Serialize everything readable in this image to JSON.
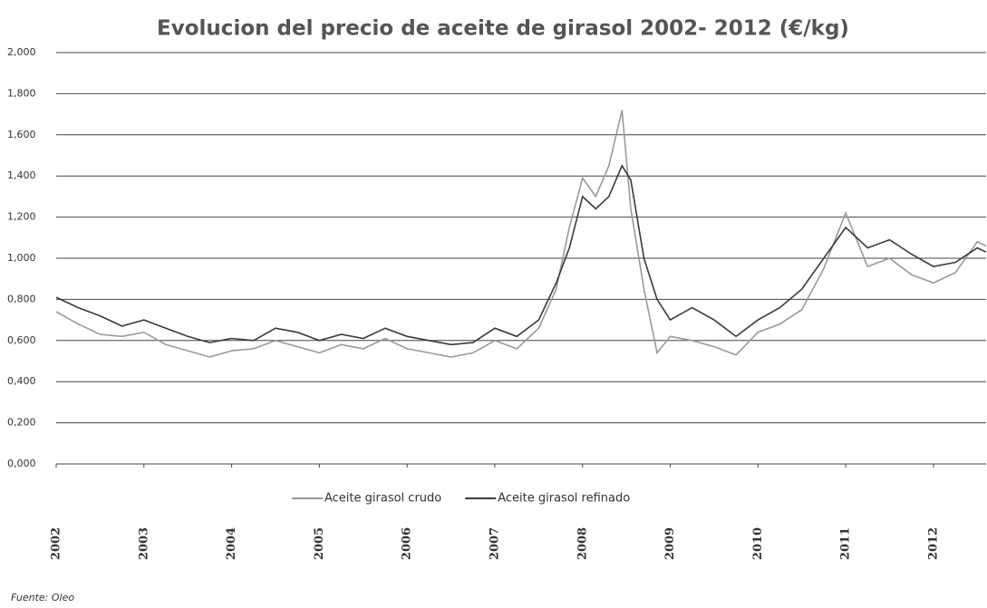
{
  "chart_data": {
    "type": "line",
    "title": "Evolucion del precio de aceite de girasol 2002- 2012 (€/kg)",
    "source": "Fuente: Oleo",
    "x": [
      2002.0,
      2002.25,
      2002.5,
      2002.75,
      2003.0,
      2003.25,
      2003.5,
      2003.75,
      2004.0,
      2004.25,
      2004.5,
      2004.75,
      2005.0,
      2005.25,
      2005.5,
      2005.75,
      2006.0,
      2006.25,
      2006.5,
      2006.75,
      2007.0,
      2007.25,
      2007.5,
      2007.7,
      2007.85,
      2008.0,
      2008.15,
      2008.3,
      2008.45,
      2008.55,
      2008.7,
      2008.85,
      2009.0,
      2009.25,
      2009.5,
      2009.75,
      2010.0,
      2010.25,
      2010.5,
      2010.75,
      2011.0,
      2011.25,
      2011.5,
      2011.75,
      2012.0,
      2012.25,
      2012.5,
      2012.6
    ],
    "series": [
      {
        "name": "Aceite girasol crudo",
        "color": "#9a9a9a",
        "values": [
          0.74,
          0.68,
          0.63,
          0.62,
          0.64,
          0.58,
          0.55,
          0.52,
          0.55,
          0.56,
          0.6,
          0.57,
          0.54,
          0.58,
          0.56,
          0.61,
          0.56,
          0.54,
          0.52,
          0.54,
          0.6,
          0.56,
          0.66,
          0.85,
          1.15,
          1.39,
          1.3,
          1.45,
          1.72,
          1.24,
          0.85,
          0.54,
          0.62,
          0.6,
          0.57,
          0.53,
          0.64,
          0.68,
          0.75,
          0.95,
          1.22,
          0.96,
          1.0,
          0.92,
          0.88,
          0.93,
          1.08,
          1.06
        ]
      },
      {
        "name": "Aceite girasol refinado",
        "color": "#3a3a3a",
        "values": [
          0.81,
          0.76,
          0.72,
          0.67,
          0.7,
          0.66,
          0.62,
          0.59,
          0.61,
          0.6,
          0.66,
          0.64,
          0.6,
          0.63,
          0.61,
          0.66,
          0.62,
          0.6,
          0.58,
          0.59,
          0.66,
          0.62,
          0.7,
          0.88,
          1.05,
          1.3,
          1.24,
          1.3,
          1.45,
          1.38,
          1.0,
          0.8,
          0.7,
          0.76,
          0.7,
          0.62,
          0.7,
          0.76,
          0.85,
          1.0,
          1.15,
          1.05,
          1.09,
          1.02,
          0.96,
          0.98,
          1.05,
          1.03
        ]
      }
    ],
    "xlim": [
      2002,
      2012.6
    ],
    "xticks": [
      2002,
      2003,
      2004,
      2005,
      2006,
      2007,
      2008,
      2009,
      2010,
      2011,
      2012
    ],
    "ylim": [
      0,
      2
    ],
    "yticks": [
      {
        "value": 0,
        "label": "0,000"
      },
      {
        "value": 0.2,
        "label": "0,200"
      },
      {
        "value": 0.4,
        "label": "0,400"
      },
      {
        "value": 0.6,
        "label": "0,600"
      },
      {
        "value": 0.8,
        "label": "0,800"
      },
      {
        "value": 1,
        "label": "1,000"
      },
      {
        "value": 1.2,
        "label": "1,200"
      },
      {
        "value": 1.4,
        "label": "1,400"
      },
      {
        "value": 1.6,
        "label": "1,600"
      },
      {
        "value": 1.8,
        "label": "1,800"
      },
      {
        "value": 2,
        "label": "2,000"
      }
    ],
    "grid": true,
    "legend": "bottom"
  }
}
